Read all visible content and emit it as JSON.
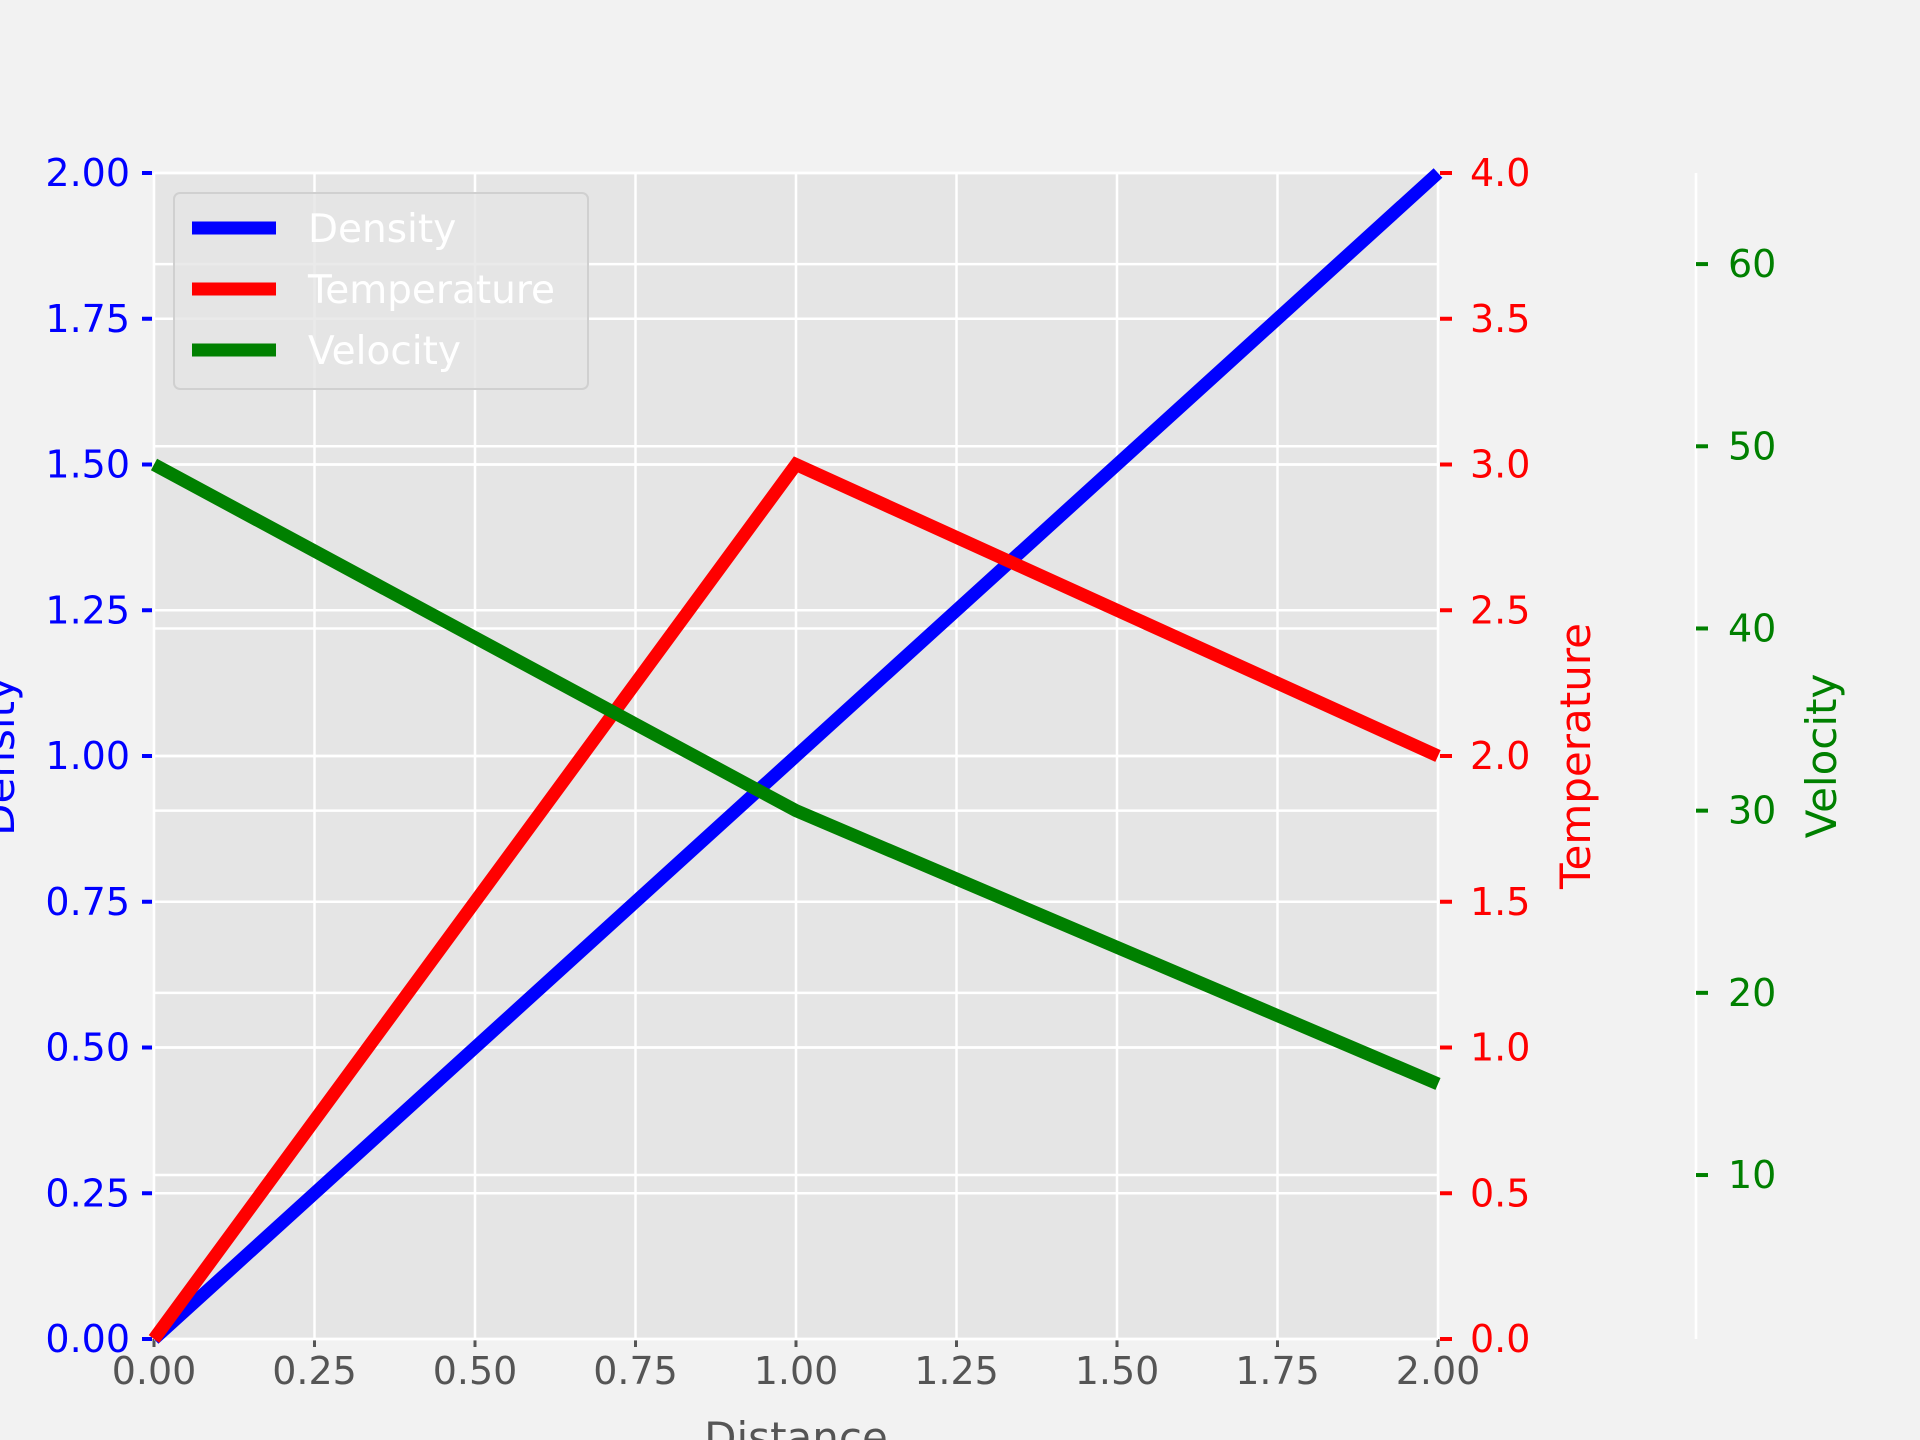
{
  "chart_data": {
    "type": "line",
    "xlabel": "Distance",
    "xlim": [
      0,
      2
    ],
    "x_ticks": [
      "0.00",
      "0.25",
      "0.50",
      "0.75",
      "1.00",
      "1.25",
      "1.50",
      "1.75",
      "2.00"
    ],
    "grid": true,
    "legend_position": "top-left",
    "axes": [
      {
        "side": "left",
        "label": "Density",
        "color": "#0000ff",
        "ylim": [
          0,
          2
        ],
        "ticks": [
          "0.00",
          "0.25",
          "0.50",
          "0.75",
          "1.00",
          "1.25",
          "1.50",
          "1.75",
          "2.00"
        ]
      },
      {
        "side": "right",
        "label": "Temperature",
        "color": "#ff0000",
        "ylim": [
          0,
          4
        ],
        "ticks": [
          "0.0",
          "0.5",
          "1.0",
          "1.5",
          "2.0",
          "2.5",
          "3.0",
          "3.5",
          "4.0"
        ]
      },
      {
        "side": "right-offset",
        "label": "Velocity",
        "color": "#008000",
        "ylim": [
          1,
          65
        ],
        "ticks": [
          "10",
          "20",
          "30",
          "40",
          "50",
          "60"
        ]
      }
    ],
    "series": [
      {
        "name": "Density",
        "axis": 0,
        "color": "#0000ff",
        "x": [
          0,
          1,
          2
        ],
        "y": [
          0,
          1,
          2
        ]
      },
      {
        "name": "Temperature",
        "axis": 1,
        "color": "#ff0000",
        "x": [
          0,
          1,
          2
        ],
        "y": [
          0,
          3,
          2
        ]
      },
      {
        "name": "Velocity",
        "axis": 2,
        "color": "#008000",
        "x": [
          0,
          1,
          2
        ],
        "y": [
          49,
          30,
          15
        ]
      }
    ]
  }
}
